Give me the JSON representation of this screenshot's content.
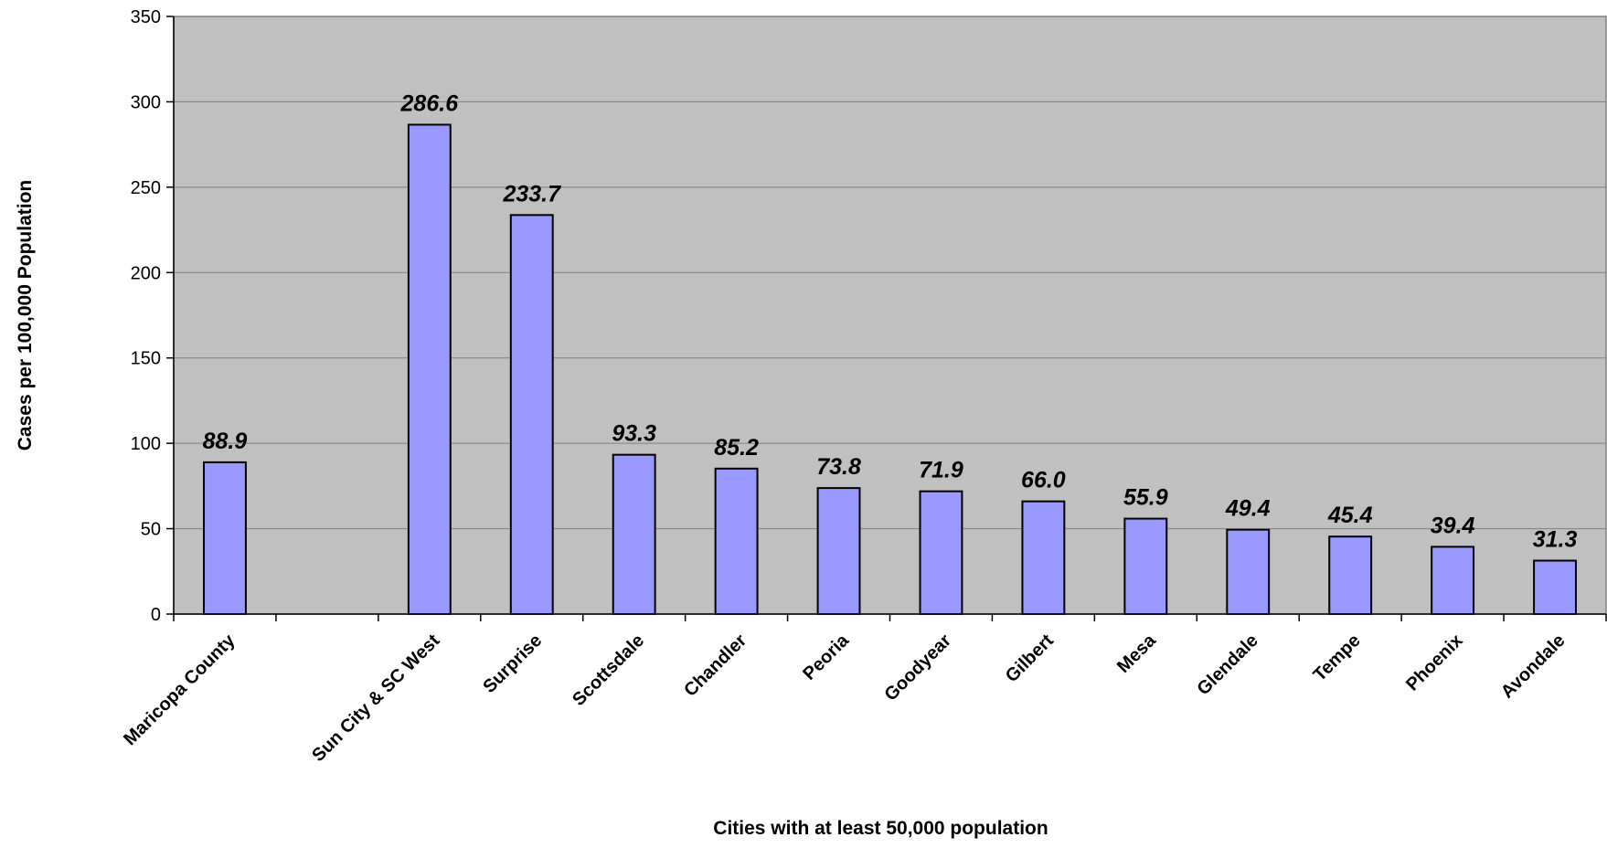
{
  "colors": {
    "plot_background": "#c0c0c0",
    "bar_fill": "#9999ff",
    "bar_stroke": "#000000",
    "gridline": "#808080"
  },
  "chart_data": {
    "type": "bar",
    "title": "",
    "xlabel": "Cities with at least 50,000 population",
    "ylabel": "Cases per 100,000 Population",
    "ylim": [
      0,
      350
    ],
    "yticks": [
      0,
      50,
      100,
      150,
      200,
      250,
      300,
      350
    ],
    "grid": true,
    "legend": "none",
    "categories": [
      "Maricopa County",
      "",
      "Sun City & SC West",
      "Surprise",
      "Scottsdale",
      "Chandler",
      "Peoria",
      "Goodyear",
      "Gilbert",
      "Mesa",
      "Glendale",
      "Tempe",
      "Phoenix",
      "Avondale"
    ],
    "values": [
      88.9,
      null,
      286.6,
      233.7,
      93.3,
      85.2,
      73.8,
      71.9,
      66.0,
      55.9,
      49.4,
      45.4,
      39.4,
      31.3
    ],
    "data_labels": [
      "88.9",
      "",
      "286.6",
      "233.7",
      "93.3",
      "85.2",
      "73.8",
      "71.9",
      "66.0",
      "55.9",
      "49.4",
      "45.4",
      "39.4",
      "31.3"
    ]
  }
}
